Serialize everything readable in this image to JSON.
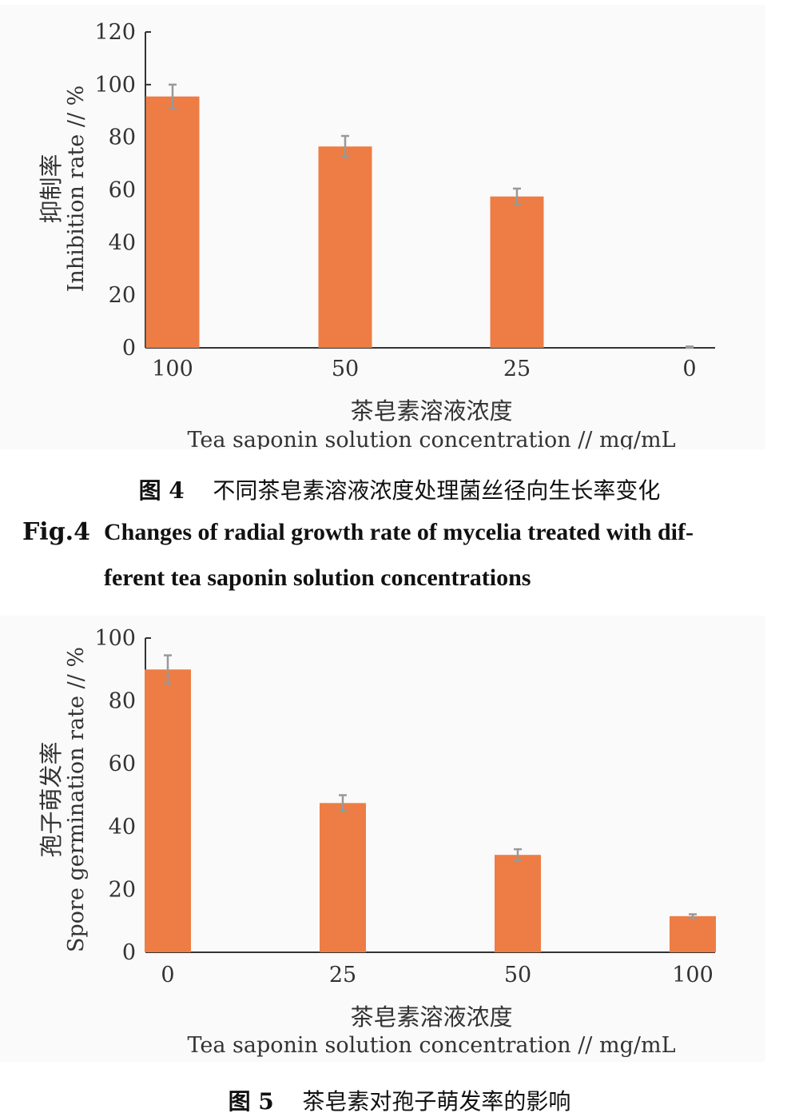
{
  "colors": {
    "bar": "#ED7D44",
    "error_bar": "#999999",
    "axis": "#333333"
  },
  "chart_data": [
    {
      "type": "bar",
      "xlabel_cn": "茶皂素溶液浓度",
      "xlabel_en": "Tea saponin solution concentration",
      "xlabel_unit": "// mg/mL",
      "ylabel_cn": "抑制率",
      "ylabel_en": "Inhibition rate // %",
      "categories": [
        "100",
        "50",
        "25",
        "0"
      ],
      "values": [
        95.5,
        76.5,
        57.5,
        0
      ],
      "errors": [
        4.5,
        4,
        3,
        0.5
      ],
      "ylim": [
        0,
        120
      ],
      "yticks": [
        "0",
        "20",
        "40",
        "60",
        "80",
        "100",
        "120"
      ],
      "grid": false,
      "legend": "none"
    },
    {
      "type": "bar",
      "xlabel_cn": "茶皂素溶液浓度",
      "xlabel_en": "Tea saponin solution concentration",
      "xlabel_unit": "// mg/mL",
      "ylabel_cn": "孢子萌发率",
      "ylabel_en": "Spore germination rate // %",
      "categories": [
        "0",
        "25",
        "50",
        "100"
      ],
      "values": [
        90,
        47.5,
        31,
        11.5
      ],
      "errors": [
        4.5,
        2.5,
        1.8,
        0.6
      ],
      "ylim": [
        0,
        100
      ],
      "yticks": [
        "0",
        "20",
        "40",
        "60",
        "80",
        "100"
      ],
      "grid": false,
      "legend": "none"
    }
  ],
  "captions": {
    "fig4_cn_no": "图 4",
    "fig4_cn_text": "不同茶皂素溶液浓度处理菌丝径向生长率变化",
    "fig4_en_no": "Fig.4",
    "fig4_en_line1": "Changes of radial growth rate of mycelia treated with dif-",
    "fig4_en_line2": "ferent tea saponin solution concentrations",
    "fig5_cn_no": "图 5",
    "fig5_cn_text": "茶皂素对孢子萌发率的影响"
  }
}
